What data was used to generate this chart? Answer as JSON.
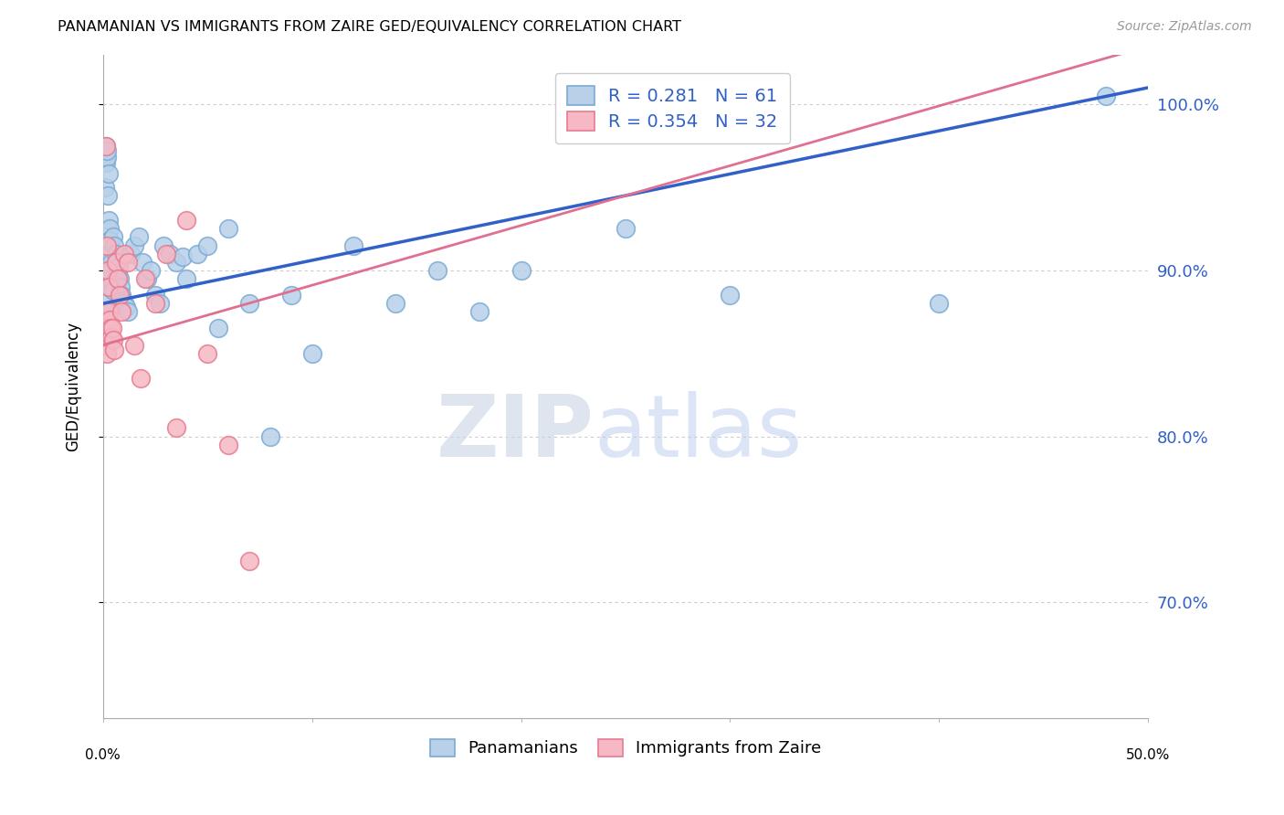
{
  "title": "PANAMANIAN VS IMMIGRANTS FROM ZAIRE GED/EQUIVALENCY CORRELATION CHART",
  "source": "Source: ZipAtlas.com",
  "ylabel": "GED/Equivalency",
  "yticks": [
    70.0,
    80.0,
    90.0,
    100.0
  ],
  "ytick_labels": [
    "70.0%",
    "80.0%",
    "90.0%",
    "100.0%"
  ],
  "xmin": 0.0,
  "xmax": 50.0,
  "ymin": 63.0,
  "ymax": 103.0,
  "blue_label": "Panamanians",
  "pink_label": "Immigrants from Zaire",
  "blue_R": 0.281,
  "blue_N": 61,
  "pink_R": 0.354,
  "pink_N": 32,
  "blue_color": "#b8d0e8",
  "blue_edge": "#7aaad4",
  "pink_color": "#f5b8c4",
  "pink_edge": "#e87a90",
  "blue_line_color": "#3060c8",
  "pink_line_color": "#e07090",
  "watermark_zip": "ZIP",
  "watermark_atlas": "atlas",
  "blue_scatter_x": [
    0.05,
    0.08,
    0.1,
    0.12,
    0.15,
    0.18,
    0.2,
    0.22,
    0.25,
    0.28,
    0.3,
    0.32,
    0.35,
    0.38,
    0.4,
    0.42,
    0.45,
    0.48,
    0.5,
    0.55,
    0.6,
    0.65,
    0.7,
    0.75,
    0.8,
    0.85,
    0.9,
    0.95,
    1.0,
    1.1,
    1.2,
    1.3,
    1.5,
    1.7,
    1.9,
    2.1,
    2.3,
    2.5,
    2.7,
    2.9,
    3.2,
    3.5,
    3.8,
    4.0,
    4.5,
    5.0,
    5.5,
    6.0,
    7.0,
    8.0,
    9.0,
    10.0,
    12.0,
    14.0,
    16.0,
    18.0,
    20.0,
    25.0,
    30.0,
    40.0,
    48.0
  ],
  "blue_scatter_y": [
    88.0,
    87.5,
    95.0,
    96.5,
    97.5,
    96.8,
    97.2,
    94.5,
    95.8,
    93.0,
    92.5,
    91.8,
    91.0,
    90.5,
    90.0,
    89.5,
    89.2,
    88.8,
    92.0,
    91.5,
    91.0,
    90.5,
    89.8,
    90.2,
    89.5,
    89.0,
    88.5,
    88.2,
    88.0,
    87.8,
    87.5,
    91.0,
    91.5,
    92.0,
    90.5,
    89.5,
    90.0,
    88.5,
    88.0,
    91.5,
    91.0,
    90.5,
    90.8,
    89.5,
    91.0,
    91.5,
    86.5,
    92.5,
    88.0,
    80.0,
    88.5,
    85.0,
    91.5,
    88.0,
    90.0,
    87.5,
    90.0,
    92.5,
    88.5,
    88.0,
    100.5
  ],
  "pink_scatter_x": [
    0.05,
    0.08,
    0.1,
    0.12,
    0.15,
    0.18,
    0.2,
    0.22,
    0.25,
    0.28,
    0.3,
    0.35,
    0.4,
    0.45,
    0.5,
    0.55,
    0.6,
    0.7,
    0.8,
    0.9,
    1.0,
    1.2,
    1.5,
    1.8,
    2.0,
    2.5,
    3.0,
    3.5,
    4.0,
    5.0,
    6.0,
    7.0
  ],
  "pink_scatter_y": [
    87.0,
    86.5,
    86.0,
    85.5,
    97.5,
    85.0,
    91.5,
    90.0,
    89.0,
    87.5,
    87.0,
    86.5,
    86.0,
    86.5,
    85.8,
    85.2,
    90.5,
    89.5,
    88.5,
    87.5,
    91.0,
    90.5,
    85.5,
    83.5,
    89.5,
    88.0,
    91.0,
    80.5,
    93.0,
    85.0,
    79.5,
    72.5
  ],
  "blue_line_x0": 0.0,
  "blue_line_y0": 88.0,
  "blue_line_x1": 50.0,
  "blue_line_y1": 101.0,
  "pink_line_x0": 0.0,
  "pink_line_y0": 85.5,
  "pink_line_x1": 50.0,
  "pink_line_y1": 103.5,
  "xtick_positions": [
    0.0,
    10.0,
    20.0,
    30.0,
    40.0,
    50.0
  ],
  "xtick_labels": [
    "0.0%",
    "",
    "",
    "",
    "",
    "50.0%"
  ]
}
